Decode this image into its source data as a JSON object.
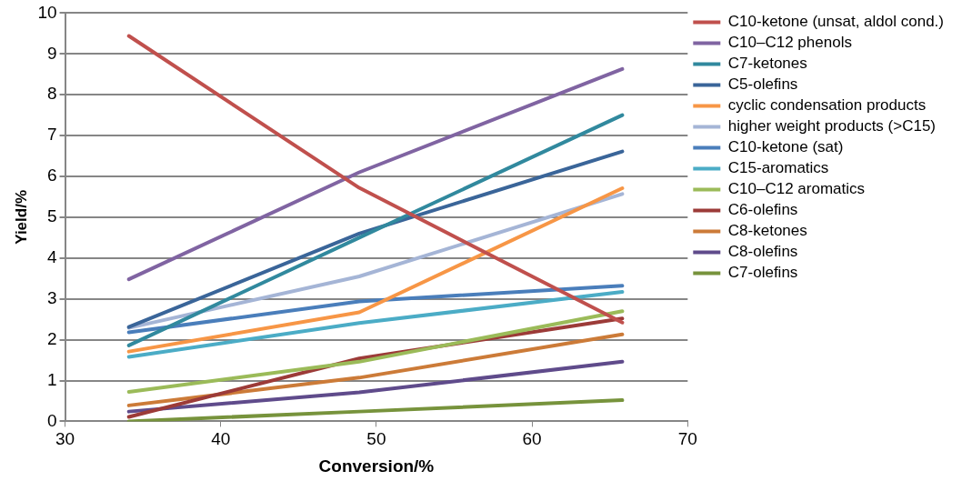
{
  "chart_data": {
    "type": "line",
    "xlabel": "Conversion/%",
    "ylabel": "Yield/%",
    "x": [
      34.1,
      48.9,
      65.8
    ],
    "xlim": [
      30,
      70
    ],
    "xticks": [
      30,
      40,
      50,
      60,
      70
    ],
    "ylim": [
      0,
      10
    ],
    "yticks": [
      0,
      1,
      2,
      3,
      4,
      5,
      6,
      7,
      8,
      9,
      10
    ],
    "grid": "y",
    "legend": "right",
    "marker": "none",
    "line_style": "solid",
    "series": [
      {
        "name": "C10-ketone (unsat, aldol cond.)",
        "color": "#c0504d",
        "values": [
          9.44,
          5.72,
          2.42
        ]
      },
      {
        "name": "C10–C12 phenols",
        "color": "#8064a2",
        "values": [
          3.48,
          6.1,
          8.63
        ]
      },
      {
        "name": "C7-ketones",
        "color": "#31899e",
        "values": [
          1.86,
          4.5,
          7.5
        ]
      },
      {
        "name": "C5-olefins",
        "color": "#3a6599",
        "values": [
          2.31,
          4.6,
          6.61
        ]
      },
      {
        "name": "cyclic condensation products",
        "color": "#f79646",
        "values": [
          1.71,
          2.67,
          5.71
        ]
      },
      {
        "name": "higher weight products (>C15)",
        "color": "#a5b5d6",
        "values": [
          2.29,
          3.55,
          5.57
        ]
      },
      {
        "name": "C10-ketone (sat)",
        "color": "#4a7ebb",
        "values": [
          2.18,
          2.94,
          3.32
        ]
      },
      {
        "name": "C15-aromatics",
        "color": "#4bacc6",
        "values": [
          1.58,
          2.41,
          3.17
        ]
      },
      {
        "name": "C10–C12 aromatics",
        "color": "#9bbb59",
        "values": [
          0.72,
          1.46,
          2.7
        ]
      },
      {
        "name": "C6-olefins",
        "color": "#9c3b38",
        "values": [
          0.11,
          1.54,
          2.52
        ]
      },
      {
        "name": "C8-ketones",
        "color": "#cc7b38",
        "values": [
          0.39,
          1.07,
          2.13
        ]
      },
      {
        "name": "C8-olefins",
        "color": "#5f4b8b",
        "values": [
          0.24,
          0.71,
          1.46
        ]
      },
      {
        "name": "C7-olefins",
        "color": "#77933c",
        "values": [
          0,
          0.24,
          0.52
        ]
      }
    ]
  }
}
